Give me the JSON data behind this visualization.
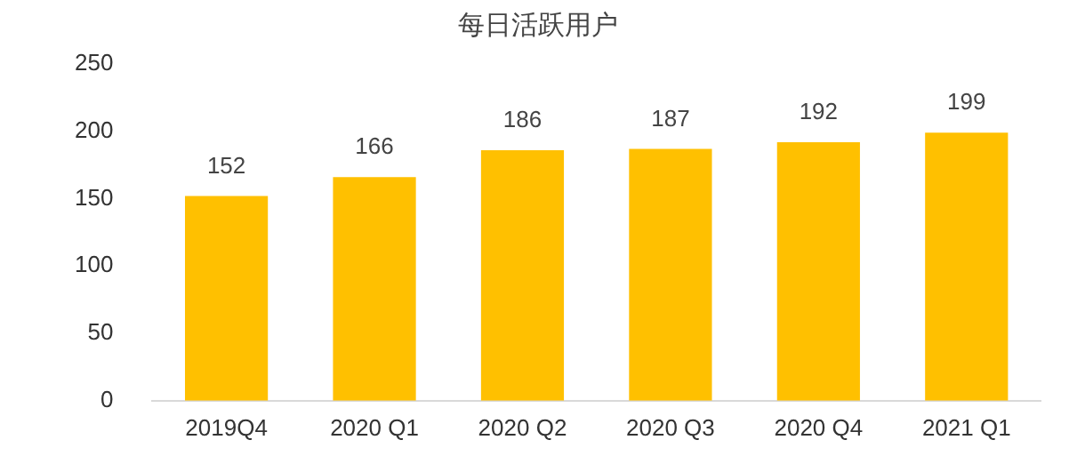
{
  "chart_data": {
    "type": "bar",
    "title": "每日活跃用户",
    "categories": [
      "2019Q4",
      "2020 Q1",
      "2020 Q2",
      "2020 Q3",
      "2020 Q4",
      "2021 Q1"
    ],
    "values": [
      152,
      166,
      186,
      187,
      192,
      199
    ],
    "color": "#ffc000",
    "ylim": [
      0,
      250
    ],
    "yticks": [
      0,
      50,
      100,
      150,
      200,
      250
    ],
    "grid": false,
    "legend": false,
    "data_labels": true
  }
}
